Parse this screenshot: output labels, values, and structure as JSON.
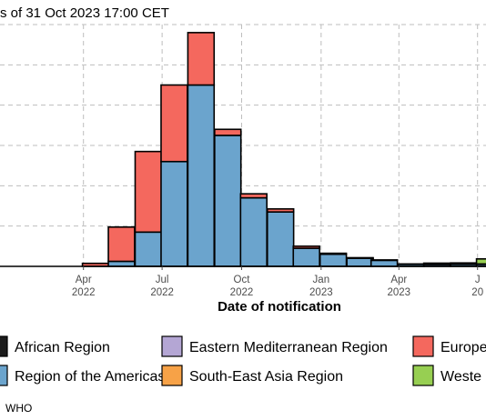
{
  "chart_data": {
    "type": "bar",
    "stacked": true,
    "title": "s of 31 Oct 2023 17:00 CET",
    "xlabel": "Date of notification",
    "ylabel": "",
    "grid": true,
    "legend_position": "bottom",
    "x_ticks": [
      {
        "date": "2022-04-01",
        "label_top": "Apr",
        "label_bottom": "2022"
      },
      {
        "date": "2022-07-01",
        "label_top": "Jul",
        "label_bottom": "2022"
      },
      {
        "date": "2022-10-01",
        "label_top": "Oct",
        "label_bottom": "2022"
      },
      {
        "date": "2023-01-01",
        "label_top": "Jan",
        "label_bottom": "2023"
      },
      {
        "date": "2023-04-01",
        "label_top": "Apr",
        "label_bottom": "2023"
      },
      {
        "date": "2023-07-01",
        "label_top": "J",
        "label_bottom": "20"
      }
    ],
    "x": [
      "2022-04-15",
      "2022-05-15",
      "2022-06-15",
      "2022-07-15",
      "2022-08-15",
      "2022-09-15",
      "2022-10-15",
      "2022-11-15",
      "2022-12-15",
      "2023-01-15",
      "2023-02-15",
      "2023-03-15",
      "2023-04-15",
      "2023-05-15",
      "2023-06-15",
      "2023-07-15"
    ],
    "series": [
      {
        "name": "African Region",
        "color": "#1b1b1b",
        "values": [
          0,
          0,
          0,
          0,
          0,
          0,
          0,
          0,
          0,
          0,
          0,
          0,
          0,
          0,
          0,
          0
        ]
      },
      {
        "name": "Region of the Americas",
        "color": "#6ba4cd",
        "values": [
          0,
          2.5,
          17,
          52,
          90,
          65,
          34,
          27,
          9,
          6,
          4,
          3,
          1,
          1,
          1,
          1
        ]
      },
      {
        "name": "Eastern Mediterranean Region",
        "color": "#b4a6d4",
        "values": [
          0,
          0,
          0,
          0,
          0,
          0,
          0,
          0,
          0,
          0,
          0,
          0,
          0,
          0,
          0,
          0
        ]
      },
      {
        "name": "South-East Asia Region",
        "color": "#f7a247",
        "values": [
          0,
          0,
          0,
          0,
          0,
          0,
          0,
          0,
          0,
          0,
          0,
          0,
          0,
          0,
          0,
          0
        ]
      },
      {
        "name": "Europe",
        "color": "#f4685e",
        "values": [
          1.5,
          17,
          40,
          38,
          26,
          3,
          2,
          1.5,
          1,
          0.5,
          0.3,
          0.2,
          0.2,
          0.1,
          0.2,
          0.2
        ]
      },
      {
        "name": "Weste",
        "color": "#97cf52",
        "values": [
          0,
          0,
          0,
          0,
          0,
          0,
          0,
          0,
          0,
          0,
          0,
          0,
          0,
          0.5,
          0.5,
          2.5
        ]
      }
    ],
    "ylim": [
      0,
      120
    ]
  },
  "legend": {
    "rows": [
      [
        {
          "name": "African Region",
          "color": "#1b1b1b"
        },
        {
          "name": "Eastern Mediterranean Region",
          "color": "#b4a6d4"
        },
        {
          "name": "Europe",
          "color": "#f4685e"
        }
      ],
      [
        {
          "name": "Region of the Americas",
          "color": "#6ba4cd"
        },
        {
          "name": "South-East Asia Region",
          "color": "#f7a247"
        },
        {
          "name": "Weste",
          "color": "#97cf52"
        }
      ]
    ]
  },
  "source": "WHO"
}
